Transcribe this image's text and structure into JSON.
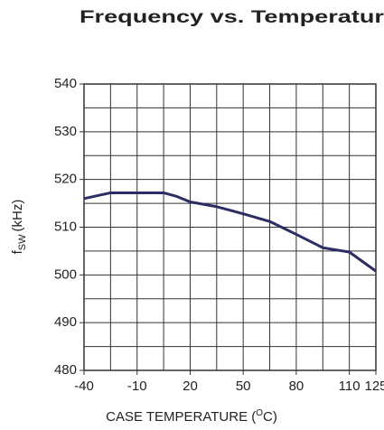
{
  "chart_data": {
    "type": "line",
    "title": "Frequency vs. Temperatur",
    "xlabel": {
      "before": "CASE TEMPERATURE (",
      "sup": "O",
      "after": "C)"
    },
    "ylabel": {
      "main": "f",
      "sub": "SW",
      "after": "(kHz)"
    },
    "x": [
      -40,
      -25,
      -10,
      5,
      12,
      20,
      35,
      50,
      65,
      80,
      95,
      110,
      125
    ],
    "series": [
      {
        "color": "#2b2d63",
        "values": [
          516,
          517.2,
          517.2,
          517.2,
          516.5,
          515.3,
          514.3,
          512.8,
          511.2,
          508.5,
          505.7,
          504.8,
          500.8
        ]
      }
    ],
    "xlim": [
      -40,
      125
    ],
    "xticks": [
      -40,
      -10,
      20,
      50,
      80,
      110,
      125
    ],
    "ylim": [
      480,
      540
    ],
    "yticks": [
      480,
      490,
      500,
      510,
      520,
      530,
      540
    ],
    "xgrid": [
      -25,
      -10,
      5,
      20,
      35,
      50,
      65,
      80,
      95,
      110
    ],
    "ygrid": [
      485,
      490,
      495,
      500,
      505,
      510,
      515,
      520,
      525,
      530,
      535
    ],
    "grid": true
  }
}
